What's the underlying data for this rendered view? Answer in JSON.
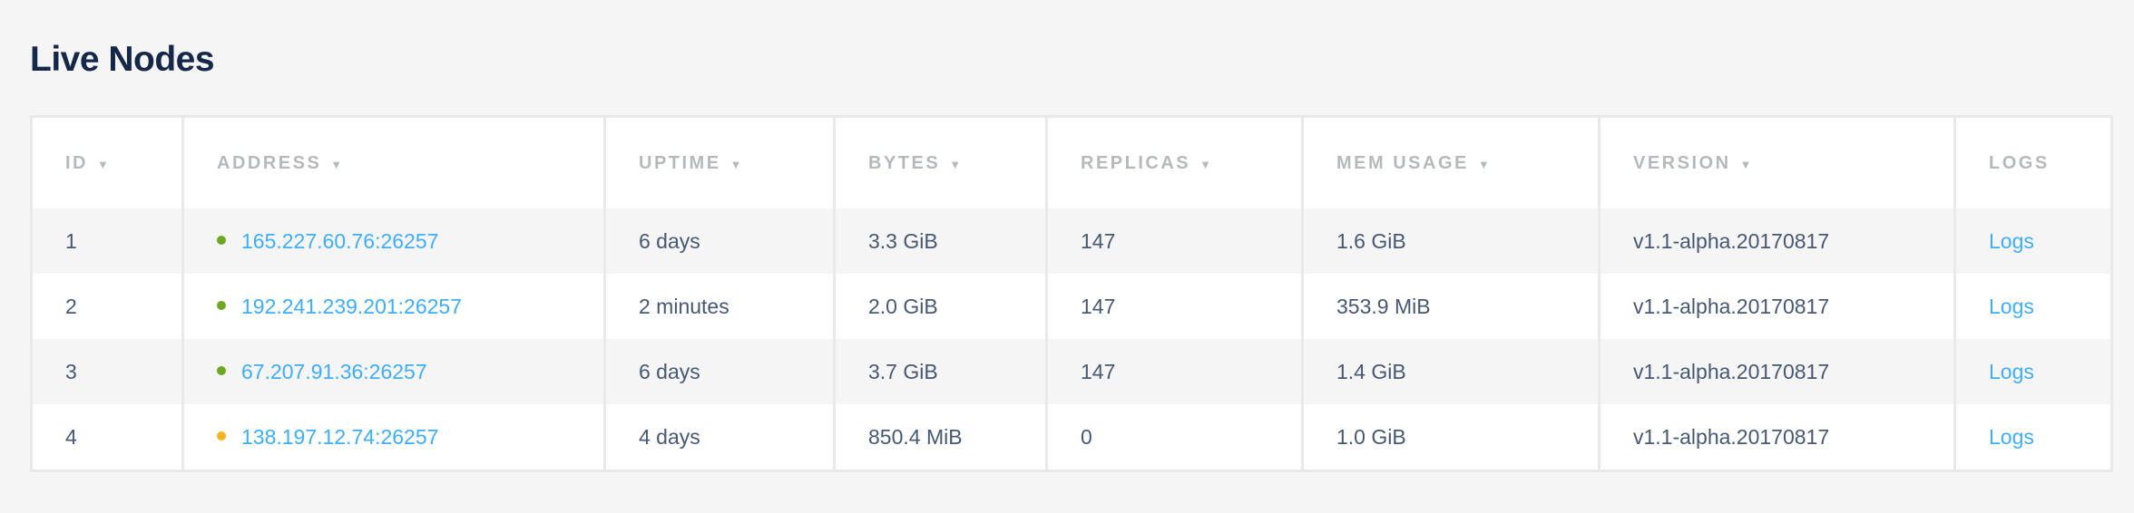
{
  "page": {
    "title": "Live Nodes"
  },
  "colors": {
    "link": "#3fadf8",
    "status_live": "#6ba71f",
    "status_suspect": "#f2b51e"
  },
  "table": {
    "columns": [
      {
        "label": "ID",
        "sortable": true
      },
      {
        "label": "ADDRESS",
        "sortable": true
      },
      {
        "label": "UPTIME",
        "sortable": true
      },
      {
        "label": "BYTES",
        "sortable": true
      },
      {
        "label": "REPLICAS",
        "sortable": true
      },
      {
        "label": "MEM USAGE",
        "sortable": true
      },
      {
        "label": "VERSION",
        "sortable": true
      },
      {
        "label": "LOGS",
        "sortable": false
      }
    ],
    "sort_icon": "caret-down-icon",
    "rows": [
      {
        "id": "1",
        "status": "live",
        "address": "165.227.60.76:26257",
        "uptime": "6 days",
        "bytes": "3.3 GiB",
        "replicas": "147",
        "mem_usage": "1.6 GiB",
        "version": "v1.1-alpha.20170817",
        "logs": "Logs"
      },
      {
        "id": "2",
        "status": "live",
        "address": "192.241.239.201:26257",
        "uptime": "2 minutes",
        "bytes": "2.0 GiB",
        "replicas": "147",
        "mem_usage": "353.9 MiB",
        "version": "v1.1-alpha.20170817",
        "logs": "Logs"
      },
      {
        "id": "3",
        "status": "live",
        "address": "67.207.91.36:26257",
        "uptime": "6 days",
        "bytes": "3.7 GiB",
        "replicas": "147",
        "mem_usage": "1.4 GiB",
        "version": "v1.1-alpha.20170817",
        "logs": "Logs"
      },
      {
        "id": "4",
        "status": "suspect",
        "address": "138.197.12.74:26257",
        "uptime": "4 days",
        "bytes": "850.4 MiB",
        "replicas": "0",
        "mem_usage": "1.0 GiB",
        "version": "v1.1-alpha.20170817",
        "logs": "Logs"
      }
    ]
  }
}
